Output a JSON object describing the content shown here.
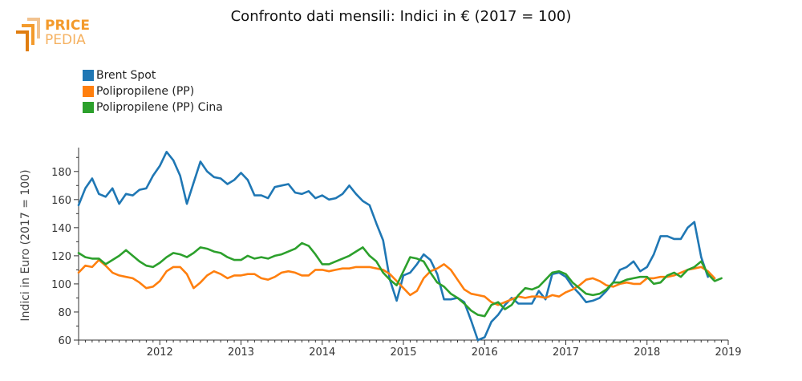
{
  "logo": {
    "line1": "PRICE",
    "line2": "PEDIA",
    "color": "#f39a2b"
  },
  "chart_data": {
    "type": "line",
    "title": "Confronto dati mensili: Indici in € (2017 = 100)",
    "ylabel": "Indici in Euro (2017 = 100)",
    "xlabel": "",
    "ylim": [
      60,
      197
    ],
    "xlim": [
      2011.0,
      2019.0
    ],
    "yticks": [
      60,
      80,
      100,
      120,
      140,
      160,
      180
    ],
    "xticks": [
      "2012",
      "2013",
      "2014",
      "2015",
      "2016",
      "2017",
      "2018",
      "2019"
    ],
    "grid": false,
    "legend_position": "top-left",
    "x_start": "2011-01",
    "series": [
      {
        "name": "Brent Spot",
        "color": "#1f77b4",
        "values": [
          156,
          168,
          175,
          164,
          162,
          168,
          157,
          164,
          163,
          167,
          168,
          177,
          184,
          194,
          188,
          177,
          157,
          172,
          187,
          180,
          176,
          175,
          171,
          174,
          179,
          174,
          163,
          163,
          161,
          169,
          170,
          171,
          165,
          164,
          166,
          161,
          163,
          160,
          161,
          164,
          170,
          164,
          159,
          156,
          143,
          131,
          103,
          88,
          106,
          108,
          114,
          121,
          117,
          107,
          89,
          89,
          90,
          87,
          74,
          60,
          62,
          73,
          78,
          85,
          90,
          86,
          86,
          86,
          95,
          89,
          107,
          108,
          105,
          98,
          93,
          87,
          88,
          90,
          95,
          101,
          110,
          112,
          116,
          109,
          112,
          121,
          134,
          134,
          132,
          132,
          140,
          144,
          119,
          105
        ]
      },
      {
        "name": "Polipropilene (PP)",
        "color": "#ff7f0e",
        "values": [
          108,
          113,
          112,
          117,
          113,
          108,
          106,
          105,
          104,
          101,
          97,
          98,
          102,
          109,
          112,
          112,
          107,
          97,
          101,
          106,
          109,
          107,
          104,
          106,
          106,
          107,
          107,
          104,
          103,
          105,
          108,
          109,
          108,
          106,
          106,
          110,
          110,
          109,
          110,
          111,
          111,
          112,
          112,
          112,
          111,
          110,
          107,
          102,
          97,
          92,
          95,
          104,
          109,
          111,
          114,
          110,
          103,
          96,
          93,
          92,
          91,
          87,
          85,
          87,
          89,
          91,
          90,
          91,
          91,
          90,
          92,
          91,
          94,
          96,
          99,
          103,
          104,
          102,
          99,
          98,
          100,
          101,
          100,
          100,
          104,
          104,
          105,
          105,
          106,
          108,
          110,
          111,
          112,
          109,
          104
        ]
      },
      {
        "name": "Polipropilene (PP) Cina",
        "color": "#2ca02c",
        "values": [
          122,
          119,
          118,
          118,
          114,
          117,
          120,
          124,
          120,
          116,
          113,
          112,
          115,
          119,
          122,
          121,
          119,
          122,
          126,
          125,
          123,
          122,
          119,
          117,
          117,
          120,
          118,
          119,
          118,
          120,
          121,
          123,
          125,
          129,
          127,
          121,
          114,
          114,
          116,
          118,
          120,
          123,
          126,
          120,
          116,
          108,
          103,
          99,
          109,
          119,
          118,
          116,
          108,
          101,
          98,
          93,
          90,
          86,
          81,
          78,
          77,
          85,
          87,
          82,
          85,
          92,
          97,
          96,
          98,
          103,
          108,
          109,
          107,
          101,
          97,
          93,
          92,
          93,
          96,
          101,
          101,
          103,
          104,
          105,
          105,
          100,
          101,
          106,
          108,
          105,
          110,
          112,
          116,
          107,
          102,
          104
        ]
      }
    ]
  }
}
